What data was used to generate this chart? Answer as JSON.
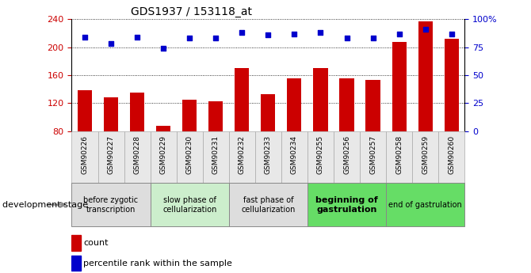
{
  "title": "GDS1937 / 153118_at",
  "samples": [
    "GSM90226",
    "GSM90227",
    "GSM90228",
    "GSM90229",
    "GSM90230",
    "GSM90231",
    "GSM90232",
    "GSM90233",
    "GSM90234",
    "GSM90255",
    "GSM90256",
    "GSM90257",
    "GSM90258",
    "GSM90259",
    "GSM90260"
  ],
  "counts": [
    138,
    128,
    135,
    88,
    125,
    122,
    170,
    133,
    155,
    170,
    155,
    153,
    207,
    237,
    212
  ],
  "percentiles": [
    84,
    78,
    84,
    74,
    83,
    83,
    88,
    86,
    87,
    88,
    83,
    83,
    87,
    91,
    87
  ],
  "ylim_left": [
    80,
    240
  ],
  "ylim_right": [
    0,
    100
  ],
  "yticks_left": [
    80,
    120,
    160,
    200,
    240
  ],
  "yticks_right": [
    0,
    25,
    50,
    75,
    100
  ],
  "yticklabels_right": [
    "0",
    "25",
    "50",
    "75",
    "100%"
  ],
  "bar_color": "#cc0000",
  "dot_color": "#0000cc",
  "grid_color": "#000000",
  "stages": [
    {
      "label": "before zygotic\ntranscription",
      "samples_idx": [
        0,
        1,
        2
      ],
      "color": "#dddddd",
      "bold": false,
      "fontsize": 7
    },
    {
      "label": "slow phase of\ncellularization",
      "samples_idx": [
        3,
        4,
        5
      ],
      "color": "#cceecc",
      "bold": false,
      "fontsize": 7
    },
    {
      "label": "fast phase of\ncellularization",
      "samples_idx": [
        6,
        7,
        8
      ],
      "color": "#dddddd",
      "bold": false,
      "fontsize": 7
    },
    {
      "label": "beginning of\ngastrulation",
      "samples_idx": [
        9,
        10,
        11
      ],
      "color": "#66dd66",
      "bold": true,
      "fontsize": 8
    },
    {
      "label": "end of gastrulation",
      "samples_idx": [
        12,
        13,
        14
      ],
      "color": "#66dd66",
      "bold": false,
      "fontsize": 7
    }
  ],
  "dev_stage_label": "development stage",
  "legend_count": "count",
  "legend_pct": "percentile rank within the sample",
  "fig_width": 6.7,
  "fig_height": 3.45,
  "dpi": 100
}
